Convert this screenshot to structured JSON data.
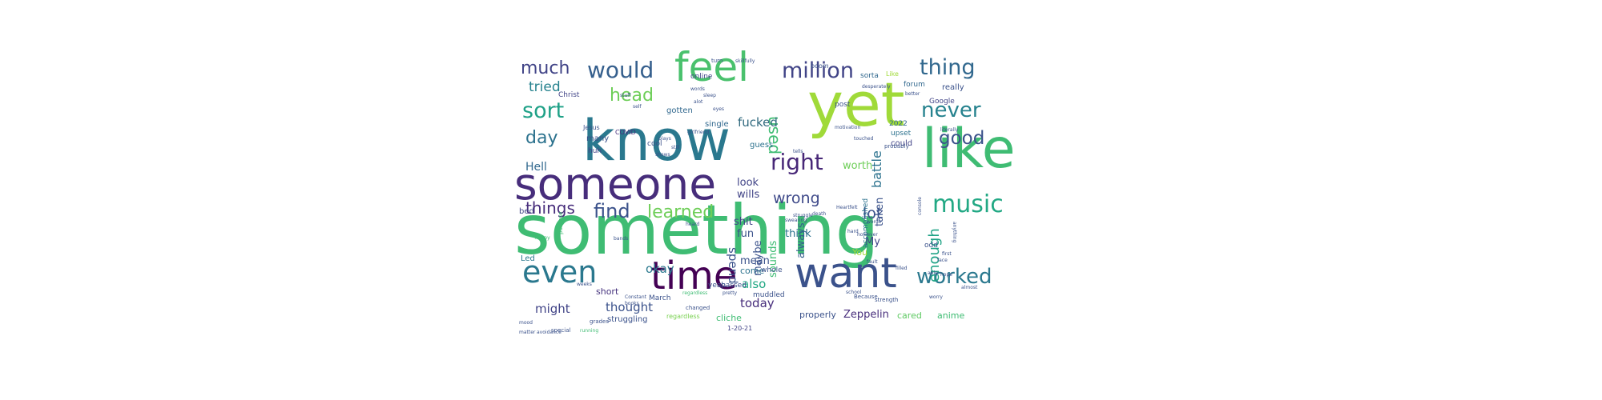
{
  "words": [
    {
      "text": "something",
      "color": "#3fbc73"
    },
    {
      "text": "know",
      "color": "#2a788e"
    },
    {
      "text": "yet",
      "color": "#a0da39"
    },
    {
      "text": "like",
      "color": "#3fbc73"
    },
    {
      "text": "someone",
      "color": "#472d7b"
    },
    {
      "text": "feel",
      "color": "#4ac16d"
    },
    {
      "text": "time",
      "color": "#440154"
    },
    {
      "text": "want",
      "color": "#3b528b"
    },
    {
      "text": "even",
      "color": "#2a788e"
    },
    {
      "text": "right",
      "color": "#482878"
    },
    {
      "text": "music",
      "color": "#22a884"
    },
    {
      "text": "million",
      "color": "#414487"
    },
    {
      "text": "would",
      "color": "#355f8d"
    },
    {
      "text": "thing",
      "color": "#31688e"
    },
    {
      "text": "sort",
      "color": "#1fa187"
    },
    {
      "text": "never",
      "color": "#26828e"
    },
    {
      "text": "worked",
      "color": "#2a788e"
    },
    {
      "text": "find",
      "color": "#3b528b"
    },
    {
      "text": "learned",
      "color": "#6ece58"
    },
    {
      "text": "much",
      "color": "#414487"
    },
    {
      "text": "head",
      "color": "#6ece58"
    },
    {
      "text": "good",
      "color": "#3b528b"
    },
    {
      "text": "day",
      "color": "#2c728e"
    },
    {
      "text": "used",
      "color": "#3fbc73"
    },
    {
      "text": "enough",
      "color": "#20a386"
    },
    {
      "text": "things",
      "color": "#472d7b"
    },
    {
      "text": "wrong",
      "color": "#3e4989"
    },
    {
      "text": "lot",
      "color": "#3b528b"
    },
    {
      "text": "tried",
      "color": "#26828e"
    },
    {
      "text": "battle",
      "color": "#2c728e"
    },
    {
      "text": "fucked",
      "color": "#30697e"
    },
    {
      "text": "okay",
      "color": "#2a788e"
    },
    {
      "text": "might",
      "color": "#414487"
    },
    {
      "text": "thought",
      "color": "#3b528b"
    },
    {
      "text": "today",
      "color": "#472d7b"
    },
    {
      "text": "also",
      "color": "#22a884"
    },
    {
      "text": "spend",
      "color": "#3b528b"
    },
    {
      "text": "Hell",
      "color": "#31688e"
    },
    {
      "text": "look",
      "color": "#414487"
    },
    {
      "text": "wills",
      "color": "#414487"
    },
    {
      "text": "shit",
      "color": "#414487"
    },
    {
      "text": "fun",
      "color": "#3b528b"
    },
    {
      "text": "worth",
      "color": "#6ece58"
    },
    {
      "text": "think",
      "color": "#2c728e"
    },
    {
      "text": "mean",
      "color": "#3b528b"
    },
    {
      "text": "maybe",
      "color": "#3b528b"
    },
    {
      "text": "sounds",
      "color": "#3fbc73"
    },
    {
      "text": "always",
      "color": "#355f8d"
    },
    {
      "text": "taken",
      "color": "#3b528b"
    },
    {
      "text": "My",
      "color": "#414487"
    },
    {
      "text": "come",
      "color": "#2c728e"
    },
    {
      "text": "short",
      "color": "#46337e"
    },
    {
      "text": "Zeppelin",
      "color": "#472d7b"
    },
    {
      "text": "properly",
      "color": "#3b528b"
    },
    {
      "text": "anime",
      "color": "#3fbc73"
    },
    {
      "text": "cared",
      "color": "#5ec962"
    },
    {
      "text": "struggling",
      "color": "#3b528b"
    },
    {
      "text": "cliche",
      "color": "#3fbc73"
    },
    {
      "text": "regardless",
      "color": "#7ad151"
    },
    {
      "text": "guess",
      "color": "#2c728e"
    },
    {
      "text": "gotten",
      "color": "#31688e"
    },
    {
      "text": "single",
      "color": "#31688e"
    },
    {
      "text": "online",
      "color": "#414487"
    },
    {
      "text": "sorta",
      "color": "#31688e"
    },
    {
      "text": "really",
      "color": "#3b528b"
    },
    {
      "text": "forum",
      "color": "#31688e"
    },
    {
      "text": "Christ",
      "color": "#414487"
    },
    {
      "text": "Jesus",
      "color": "#3b528b"
    },
    {
      "text": "many",
      "color": "#3b528b"
    },
    {
      "text": "huh",
      "color": "#414487"
    },
    {
      "text": "COVID",
      "color": "#472d7b"
    },
    {
      "text": "cool",
      "color": "#3b528b"
    },
    {
      "text": "Google",
      "color": "#414487"
    },
    {
      "text": "Led",
      "color": "#2a788e"
    },
    {
      "text": "bed",
      "color": "#414487"
    },
    {
      "text": "post",
      "color": "#3b528b"
    },
    {
      "text": "could",
      "color": "#414487"
    },
    {
      "text": "2022",
      "color": "#31688e"
    },
    {
      "text": "upset",
      "color": "#2c728e"
    },
    {
      "text": "You",
      "color": "#a0da39"
    },
    {
      "text": "whole",
      "color": "#3b528b"
    },
    {
      "text": "yeah",
      "color": "#3b528b"
    },
    {
      "text": "passed",
      "color": "#3b528b"
    },
    {
      "text": "muddled",
      "color": "#3b528b"
    },
    {
      "text": "March",
      "color": "#3b528b"
    },
    {
      "text": "odd",
      "color": "#3b528b"
    },
    {
      "text": "accomplished",
      "color": "#2c728e"
    },
    {
      "text": "1-20-21",
      "color": "#414487"
    },
    {
      "text": "boom",
      "color": "#3b528b"
    },
    {
      "text": "Like",
      "color": "#a0da39"
    },
    {
      "text": "probably",
      "color": "#3b528b"
    },
    {
      "text": "Because",
      "color": "#3b528b"
    },
    {
      "text": "strength",
      "color": "#3b528b"
    },
    {
      "text": "changed",
      "color": "#3b528b"
    },
    {
      "text": "grades",
      "color": "#3b528b"
    },
    {
      "text": "special",
      "color": "#3b528b"
    },
    {
      "text": "running",
      "color": "#3fbc73"
    },
    {
      "text": "school",
      "color": "#3b528b"
    },
    {
      "text": "turn",
      "color": "#3b528b"
    },
    {
      "text": "skillfully",
      "color": "#3b528b"
    },
    {
      "text": "desperately",
      "color": "#3b528b"
    },
    {
      "text": "better",
      "color": "#3b528b"
    },
    {
      "text": "motivation",
      "color": "#3b528b"
    },
    {
      "text": "literally",
      "color": "#3b528b"
    },
    {
      "text": "touched",
      "color": "#3b528b"
    },
    {
      "text": "tells",
      "color": "#3b528b"
    },
    {
      "text": "words",
      "color": "#3b528b"
    },
    {
      "text": "however",
      "color": "#3b528b"
    },
    {
      "text": "filled",
      "color": "#3b528b"
    },
    {
      "text": "fault",
      "color": "#3b528b"
    },
    {
      "text": "face",
      "color": "#3b528b"
    },
    {
      "text": "hope",
      "color": "#3b528b"
    },
    {
      "text": "purpose",
      "color": "#3fbc73"
    },
    {
      "text": "happy",
      "color": "#3fbc73"
    },
    {
      "text": "bands",
      "color": "#3b528b"
    },
    {
      "text": "Constant",
      "color": "#3b528b"
    },
    {
      "text": "struggle",
      "color": "#3b528b"
    },
    {
      "text": "heard",
      "color": "#3b528b"
    },
    {
      "text": "swearing",
      "color": "#3b528b"
    },
    {
      "text": "death",
      "color": "#3b528b"
    },
    {
      "text": "Heartfelt",
      "color": "#3b528b"
    },
    {
      "text": "hard",
      "color": "#3b528b"
    },
    {
      "text": "books",
      "color": "#3b528b"
    },
    {
      "text": "able",
      "color": "#3b528b"
    },
    {
      "text": "first",
      "color": "#3b528b"
    },
    {
      "text": "almost",
      "color": "#3b528b"
    },
    {
      "text": "worry",
      "color": "#3b528b"
    },
    {
      "text": "anything",
      "color": "#3b528b"
    },
    {
      "text": "console",
      "color": "#3b528b"
    },
    {
      "text": "regardless",
      "color": "#3fbc73"
    },
    {
      "text": "pretty",
      "color": "#3b528b"
    },
    {
      "text": "mood",
      "color": "#3b528b"
    },
    {
      "text": "matter",
      "color": "#3b528b"
    },
    {
      "text": "avoidance",
      "color": "#3b528b"
    },
    {
      "text": "words",
      "color": "#3b528b"
    },
    {
      "text": "sleep",
      "color": "#3b528b"
    },
    {
      "text": "alot",
      "color": "#3b528b"
    },
    {
      "text": "weeks",
      "color": "#3b528b"
    },
    {
      "text": "eyes",
      "color": "#3b528b"
    },
    {
      "text": "girlfriend",
      "color": "#3b528b"
    },
    {
      "text": "stuff",
      "color": "#3b528b"
    },
    {
      "text": "self",
      "color": "#3b528b"
    },
    {
      "text": "plays",
      "color": "#3b528b"
    },
    {
      "text": "still",
      "color": "#3b528b"
    },
    {
      "text": "shows",
      "color": "#3b528b"
    }
  ]
}
